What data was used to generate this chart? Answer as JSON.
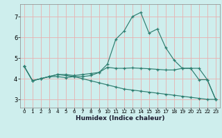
{
  "x_values": [
    0,
    1,
    2,
    3,
    4,
    5,
    6,
    7,
    8,
    9,
    10,
    11,
    12,
    13,
    14,
    15,
    16,
    17,
    18,
    19,
    20,
    21,
    22,
    23
  ],
  "line1": [
    4.6,
    3.9,
    4.0,
    4.1,
    4.1,
    4.05,
    4.1,
    4.1,
    4.15,
    4.3,
    4.7,
    5.9,
    6.3,
    7.0,
    7.2,
    6.2,
    6.4,
    5.5,
    4.9,
    4.5,
    4.5,
    3.95,
    3.95,
    3.0
  ],
  "line2": [
    4.6,
    3.9,
    4.0,
    4.1,
    4.2,
    4.2,
    4.15,
    4.2,
    4.25,
    4.3,
    4.55,
    4.5,
    4.5,
    4.52,
    4.5,
    4.48,
    4.45,
    4.42,
    4.42,
    4.5,
    4.5,
    4.5,
    3.95,
    3.0
  ],
  "line3": [
    4.6,
    3.9,
    4.0,
    4.1,
    4.2,
    4.15,
    4.1,
    4.0,
    3.9,
    3.8,
    3.7,
    3.6,
    3.5,
    3.45,
    3.4,
    3.35,
    3.3,
    3.25,
    3.2,
    3.15,
    3.1,
    3.05,
    3.0,
    3.0
  ],
  "bg_color": "#ceeeed",
  "line_color": "#2d7d6f",
  "grid_color_h": "#e8b0b0",
  "grid_color_v": "#e0c8c8",
  "ylabel_ticks": [
    3,
    4,
    5,
    6,
    7
  ],
  "xlabel": "Humidex (Indice chaleur)",
  "ylim": [
    2.6,
    7.6
  ],
  "xlim": [
    -0.5,
    23.5
  ]
}
